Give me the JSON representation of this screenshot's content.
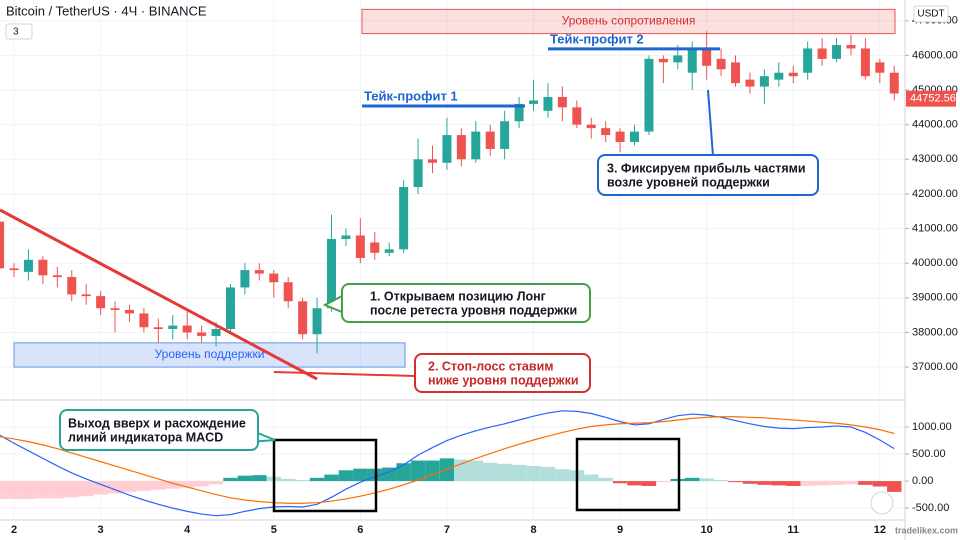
{
  "header": {
    "symbol": "Bitcoin / TetherUS · 4Ч · BINANCE",
    "indicators": "3",
    "currency": "USDT",
    "watermark": "tradelikex.com"
  },
  "chart_data": [
    {
      "type": "candlestick",
      "categories": [
        null,
        "2",
        null,
        null,
        null,
        null,
        null,
        "3",
        null,
        null,
        null,
        null,
        null,
        "4",
        null,
        null,
        null,
        null,
        null,
        "5",
        null,
        null,
        null,
        null,
        null,
        "6",
        null,
        null,
        null,
        null,
        null,
        "7",
        null,
        null,
        null,
        null,
        null,
        "8",
        null,
        null,
        null,
        null,
        null,
        "9",
        null,
        null,
        null,
        null,
        null,
        "10",
        null,
        null,
        null,
        null,
        null,
        "11",
        null,
        null,
        null,
        null,
        null,
        "12",
        null
      ],
      "open": [
        41200,
        39850,
        39750,
        40100,
        39650,
        39600,
        39100,
        39050,
        38700,
        38650,
        38550,
        38150,
        38100,
        38200,
        38000,
        37900,
        38100,
        39300,
        39800,
        39700,
        39450,
        38900,
        37950,
        38700,
        40700,
        40800,
        40600,
        40300,
        40400,
        42200,
        43000,
        42900,
        43700,
        43000,
        43800,
        43300,
        44100,
        44600,
        44400,
        44800,
        44500,
        44000,
        43900,
        43800,
        43500,
        43800,
        45900,
        45800,
        45500,
        46200,
        45900,
        45800,
        45300,
        45100,
        45300,
        45500,
        45500,
        46200,
        45900,
        46300,
        46200,
        45800,
        45500
      ],
      "high": [
        41300,
        40000,
        40400,
        40200,
        39900,
        39800,
        39400,
        39200,
        38900,
        38800,
        38700,
        38400,
        38500,
        38600,
        38200,
        38300,
        39400,
        40000,
        40000,
        39800,
        39600,
        39000,
        39000,
        41400,
        41000,
        41300,
        40900,
        40600,
        42400,
        43600,
        43400,
        44200,
        43900,
        44100,
        44000,
        44400,
        44800,
        45300,
        45200,
        45100,
        44700,
        44200,
        44100,
        43900,
        44000,
        46000,
        46000,
        46300,
        46400,
        46700,
        46200,
        46000,
        45500,
        45600,
        45800,
        45700,
        46400,
        46500,
        46500,
        46600,
        46500,
        45900,
        45700
      ],
      "low": [
        39700,
        39600,
        39500,
        39400,
        39300,
        38900,
        38800,
        38500,
        38000,
        38300,
        38000,
        37700,
        37800,
        37800,
        37700,
        37600,
        38000,
        39100,
        39500,
        39000,
        38700,
        37800,
        37400,
        38600,
        40500,
        40000,
        40100,
        40200,
        40300,
        42000,
        42600,
        42700,
        42800,
        42900,
        43100,
        43000,
        43900,
        44400,
        44200,
        44100,
        43900,
        43600,
        43500,
        43200,
        43400,
        43700,
        45200,
        45600,
        45000,
        45300,
        45400,
        45100,
        44900,
        44600,
        45100,
        45200,
        45300,
        45700,
        45800,
        46000,
        45300,
        45200,
        44700
      ],
      "close": [
        39850,
        39800,
        40100,
        39650,
        39600,
        39100,
        39050,
        38700,
        38650,
        38550,
        38150,
        38100,
        38200,
        38000,
        37900,
        38100,
        39300,
        39800,
        39700,
        39450,
        38900,
        37950,
        38700,
        40700,
        40800,
        40150,
        40300,
        40400,
        42200,
        43000,
        42900,
        43700,
        43000,
        43800,
        43300,
        44100,
        44600,
        44700,
        44800,
        44500,
        44000,
        43900,
        43700,
        43500,
        43800,
        45900,
        45800,
        46000,
        46200,
        45700,
        45600,
        45200,
        45100,
        45400,
        45500,
        45400,
        46200,
        45900,
        46300,
        46200,
        45400,
        45500,
        44900
      ],
      "colors": {
        "up": "#26a69a",
        "down": "#ef5350"
      },
      "ylim": [
        36050,
        47600
      ],
      "yticks": [
        {
          "value": 37000,
          "label": "37000.00"
        },
        {
          "value": 38000,
          "label": "38000.00"
        },
        {
          "value": 39000,
          "label": "39000.00"
        },
        {
          "value": 40000,
          "label": "40000.00"
        },
        {
          "value": 41000,
          "label": "41000.00"
        },
        {
          "value": 42000,
          "label": "42000.00"
        },
        {
          "value": 43000,
          "label": "43000.00"
        },
        {
          "value": 44000,
          "label": "44000.00"
        },
        {
          "value": 45000,
          "label": "45000.00"
        },
        {
          "value": 46000,
          "label": "46000.00"
        },
        {
          "value": 47000,
          "label": "47000.00"
        }
      ],
      "grid": true,
      "last_price": 44752.56,
      "annotations": {
        "resistance": {
          "label": "Уровень сопротивления",
          "from": 46630,
          "to": 47330
        },
        "support": {
          "label": "Уровень поддержки",
          "from": 37000,
          "to": 37700
        },
        "take_profit_1": {
          "label": "Тейк-профит 1",
          "value": 44540
        },
        "take_profit_2": {
          "label": "Тейк-профит 2",
          "value": 46190
        },
        "callouts": [
          {
            "lines": [
              "1. Открываем позицию Лонг",
              "после ретеста уровня поддержки"
            ]
          },
          {
            "lines": [
              "2. Стоп-лосс ставим",
              "ниже уровня поддержки"
            ]
          },
          {
            "lines": [
              "3. Фиксируем прибыль частями",
              "возле уровней поддержки"
            ]
          },
          {
            "lines": [
              "Выход вверх и расхождение",
              "линий индикатора MACD"
            ]
          }
        ]
      }
    },
    {
      "type": "macd",
      "histogram": [
        -330,
        -330,
        -330,
        -320,
        -320,
        -300,
        -280,
        -250,
        -230,
        -200,
        -180,
        -160,
        -140,
        -120,
        -100,
        -60,
        60,
        100,
        110,
        80,
        40,
        20,
        60,
        120,
        200,
        230,
        230,
        250,
        330,
        380,
        380,
        420,
        400,
        380,
        340,
        320,
        300,
        280,
        260,
        220,
        200,
        120,
        60,
        -40,
        -80,
        -90,
        -20,
        40,
        60,
        50,
        20,
        -20,
        -50,
        -70,
        -80,
        -90,
        -90,
        -80,
        -70,
        -60,
        -70,
        -100,
        -200
      ],
      "histogram_colors": [
        "#26a69a",
        "#b2dfdb",
        "#ef5350",
        "#ffcdd2"
      ],
      "lines": [
        {
          "color": "#2962ff",
          "values": [
            850,
            700,
            560,
            420,
            280,
            150,
            40,
            -60,
            -160,
            -260,
            -350,
            -430,
            -500,
            -560,
            -610,
            -640,
            -620,
            -560,
            -510,
            -480,
            -470,
            -480,
            -430,
            -300,
            -150,
            -20,
            80,
            170,
            300,
            480,
            620,
            750,
            850,
            930,
            1000,
            1060,
            1130,
            1200,
            1260,
            1300,
            1290,
            1250,
            1180,
            1100,
            1040,
            1060,
            1140,
            1210,
            1240,
            1220,
            1180,
            1120,
            1060,
            1010,
            980,
            970,
            990,
            1000,
            1020,
            1000,
            900,
            760,
            600
          ]
        },
        {
          "color": "#ff6d00",
          "values": [
            820,
            780,
            730,
            670,
            600,
            520,
            440,
            360,
            280,
            200,
            120,
            40,
            -40,
            -110,
            -180,
            -250,
            -310,
            -350,
            -380,
            -400,
            -410,
            -410,
            -400,
            -370,
            -330,
            -280,
            -220,
            -150,
            -70,
            20,
            120,
            220,
            320,
            420,
            510,
            600,
            680,
            760,
            830,
            900,
            960,
            1010,
            1040,
            1060,
            1070,
            1080,
            1100,
            1130,
            1160,
            1180,
            1190,
            1190,
            1180,
            1170,
            1150,
            1130,
            1110,
            1090,
            1070,
            1040,
            1000,
            950,
            880
          ]
        }
      ],
      "ylim": [
        -720,
        1500
      ],
      "yticks": [
        {
          "value": 1000,
          "label": "1000.00"
        },
        {
          "value": 500,
          "label": "500.00"
        },
        {
          "value": 0,
          "label": "0.00"
        },
        {
          "value": -500,
          "label": "-500.00"
        }
      ]
    }
  ]
}
